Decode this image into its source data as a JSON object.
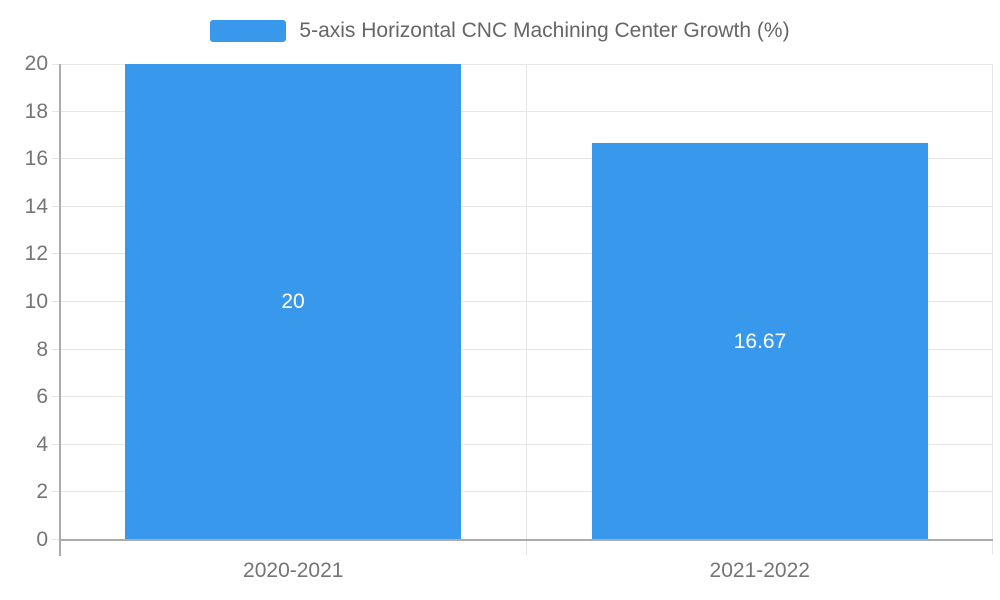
{
  "chart_data": {
    "type": "bar",
    "legend": "5-axis Horizontal CNC Machining Center Growth (%)",
    "categories": [
      "2020-2021",
      "2021-2022"
    ],
    "series": [
      {
        "name": "5-axis Horizontal CNC Machining Center Growth (%)",
        "values": [
          20,
          16.67
        ],
        "value_labels": [
          "20",
          "16.67"
        ]
      }
    ],
    "xlabel": "",
    "ylabel": "",
    "ylim": [
      0,
      20
    ],
    "ytick_step": 2,
    "grid": true,
    "legend_position": "top-center",
    "colors": {
      "bar": "#3899EC",
      "grid": "#E6E6E6",
      "axis": "#ABABAB",
      "tick_text": "#757575",
      "legend_text": "#666666",
      "bar_label_text": "#FFFFFF",
      "background": "#FFFFFF"
    }
  }
}
